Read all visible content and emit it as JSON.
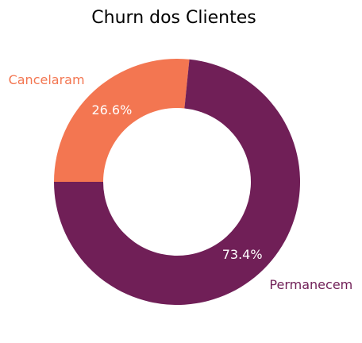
{
  "chart_data": {
    "type": "pie",
    "title": "Churn dos Clientes",
    "donut": true,
    "slices": [
      {
        "label": "Cancelaram",
        "value": 26.6,
        "pct_label": "26.6%",
        "color": "#f37651"
      },
      {
        "label": "Permanecem",
        "value": 73.4,
        "pct_label": "73.4%",
        "color": "#701f57"
      }
    ]
  }
}
